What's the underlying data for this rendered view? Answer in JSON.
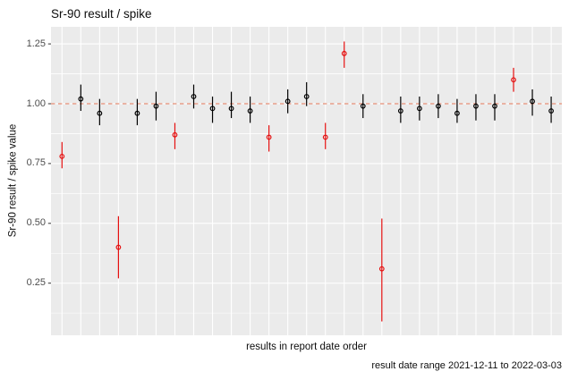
{
  "chart_data": {
    "type": "pointrange",
    "title": "Sr-90 result / spike",
    "xlabel": "results in report date order",
    "ylabel": "Sr-90 result / spike value",
    "caption": "result date range 2021-12-11 to 2022-03-03",
    "grid": true,
    "legend": false,
    "ylim": [
      0.04,
      1.32
    ],
    "y_ticks": [
      {
        "value": 1.25,
        "label": "1.25"
      },
      {
        "value": 1.0,
        "label": "1.00"
      },
      {
        "value": 0.75,
        "label": "0.75"
      },
      {
        "value": 0.5,
        "label": "0.50"
      },
      {
        "value": 0.25,
        "label": "0.25"
      }
    ],
    "reference_line": {
      "y": 1.0,
      "style": "dashed",
      "color": "#E89178"
    },
    "colors": {
      "normal_point": "#000000",
      "flagged_point": "#E51010",
      "panel_bg": "#EBEBEB",
      "gridline": "#FFFFFF",
      "tick_mark": "#333333",
      "tick_label": "#4D4D4D"
    },
    "points": [
      {
        "index": 1,
        "value": 0.78,
        "low": 0.73,
        "high": 0.84,
        "flagged": true
      },
      {
        "index": 2,
        "value": 1.02,
        "low": 0.97,
        "high": 1.08,
        "flagged": false
      },
      {
        "index": 3,
        "value": 0.96,
        "low": 0.91,
        "high": 1.02,
        "flagged": false
      },
      {
        "index": 4,
        "value": 0.4,
        "low": 0.27,
        "high": 0.53,
        "flagged": true
      },
      {
        "index": 5,
        "value": 0.96,
        "low": 0.91,
        "high": 1.02,
        "flagged": false
      },
      {
        "index": 6,
        "value": 0.99,
        "low": 0.93,
        "high": 1.05,
        "flagged": false
      },
      {
        "index": 7,
        "value": 0.87,
        "low": 0.81,
        "high": 0.92,
        "flagged": true
      },
      {
        "index": 8,
        "value": 1.03,
        "low": 0.98,
        "high": 1.08,
        "flagged": false
      },
      {
        "index": 9,
        "value": 0.98,
        "low": 0.92,
        "high": 1.03,
        "flagged": false
      },
      {
        "index": 10,
        "value": 0.98,
        "low": 0.94,
        "high": 1.05,
        "flagged": false
      },
      {
        "index": 11,
        "value": 0.97,
        "low": 0.92,
        "high": 1.03,
        "flagged": false
      },
      {
        "index": 12,
        "value": 0.86,
        "low": 0.8,
        "high": 0.91,
        "flagged": true
      },
      {
        "index": 13,
        "value": 1.01,
        "low": 0.96,
        "high": 1.06,
        "flagged": false
      },
      {
        "index": 14,
        "value": 1.03,
        "low": 0.99,
        "high": 1.09,
        "flagged": false
      },
      {
        "index": 15,
        "value": 0.86,
        "low": 0.81,
        "high": 0.92,
        "flagged": true
      },
      {
        "index": 16,
        "value": 1.21,
        "low": 1.15,
        "high": 1.26,
        "flagged": true
      },
      {
        "index": 17,
        "value": 0.99,
        "low": 0.94,
        "high": 1.04,
        "flagged": false
      },
      {
        "index": 18,
        "value": 0.31,
        "low": 0.09,
        "high": 0.52,
        "flagged": true
      },
      {
        "index": 19,
        "value": 0.97,
        "low": 0.92,
        "high": 1.03,
        "flagged": false
      },
      {
        "index": 20,
        "value": 0.98,
        "low": 0.93,
        "high": 1.03,
        "flagged": false
      },
      {
        "index": 21,
        "value": 0.99,
        "low": 0.94,
        "high": 1.04,
        "flagged": false
      },
      {
        "index": 22,
        "value": 0.96,
        "low": 0.92,
        "high": 1.02,
        "flagged": false
      },
      {
        "index": 23,
        "value": 0.99,
        "low": 0.93,
        "high": 1.04,
        "flagged": false
      },
      {
        "index": 24,
        "value": 0.99,
        "low": 0.93,
        "high": 1.04,
        "flagged": false
      },
      {
        "index": 25,
        "value": 1.1,
        "low": 1.05,
        "high": 1.15,
        "flagged": true
      },
      {
        "index": 26,
        "value": 1.01,
        "low": 0.95,
        "high": 1.06,
        "flagged": false
      },
      {
        "index": 27,
        "value": 0.97,
        "low": 0.92,
        "high": 1.03,
        "flagged": false
      }
    ]
  }
}
